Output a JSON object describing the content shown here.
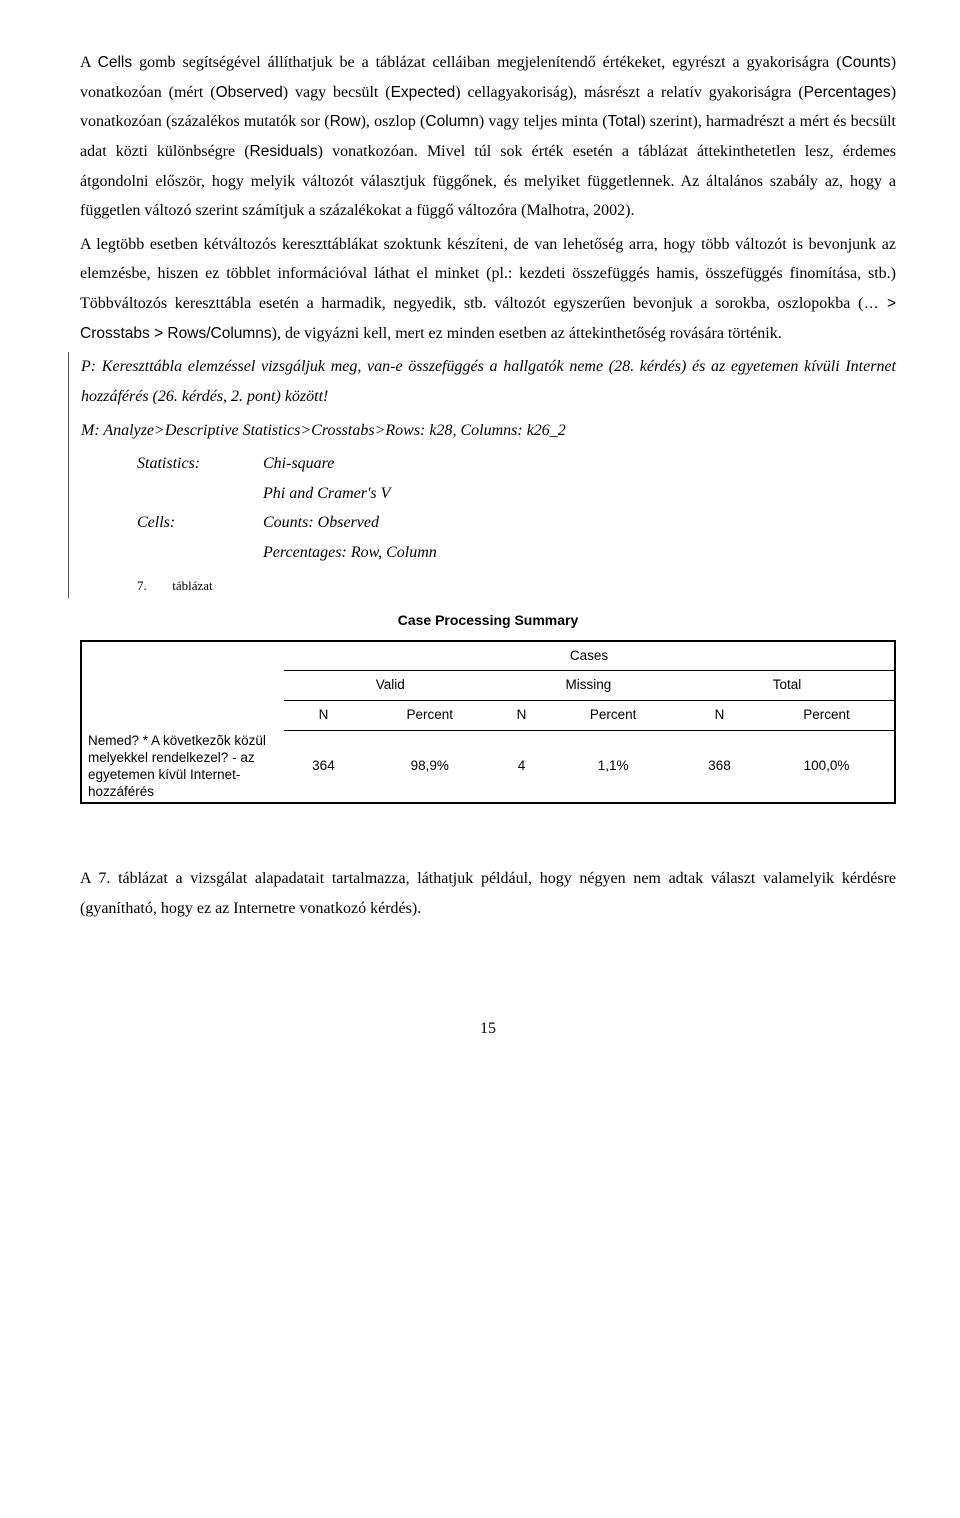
{
  "paragraph1_html": "A <span class='sans'>Cells</span> gomb segítségével állíthatjuk be a táblázat celláiban megjelenítendő értékeket, egyrészt a gyakoriságra (<span class='sans'>Counts</span>) vonatkozóan (mért (<span class='sans'>Observed</span>) vagy becsült (<span class='sans'>Expected</span>) cellagyakoriság), másrészt a relatív gyakoriságra (<span class='sans'>Percentages</span>) vonatkozóan (százalékos mutatók sor (<span class='sans'>Row</span>), oszlop (<span class='sans'>Column</span>) vagy teljes minta (<span class='sans'>Total</span>) szerint), harmadrészt a mért és becsült adat közti különbségre (<span class='sans'>Residuals</span>) vonatkozóan. Mivel túl sok érték esetén a táblázat áttekinthetetlen lesz, érdemes átgondolni először, hogy melyik változót választjuk függőnek, és melyiket függetlennek. Az általános szabály az, hogy a független változó szerint számítjuk a százalékokat a függő változóra (Malhotra, 2002).",
  "paragraph2_html": "A legtöbb esetben kétváltozós kereszttáblákat szoktunk készíteni, de van lehetőség arra, hogy több változót is bevonjunk az elemzésbe, hiszen ez többlet információval láthat el minket (pl.: kezdeti összefüggés hamis, összefüggés finomítása, stb.) Többváltozós kereszttábla esetén a harmadik, negyedik, stb. változót egyszerűen bevonjuk a sorokba, oszlopokba (<span class='sans'>… &gt; Crosstabs &gt; Rows/Columns</span>), de vigyázni kell, mert ez minden esetben az áttekinthetőség rovására történik.",
  "p_line": "P: Kereszttábla elemzéssel vizsgáljuk meg, van-e összefüggés a hallgatók neme (28. kérdés) és az egyetemen kívüli Internet hozzáférés (26. kérdés, 2. pont) között!",
  "m_line": "M: Analyze>Descriptive Statistics>Crosstabs>Rows: k28, Columns: k26_2",
  "stats": {
    "label": "Statistics:",
    "v1": "Chi-square",
    "v2": "Phi and Cramer's V"
  },
  "cells": {
    "label": "Cells:",
    "v1": "Counts: Observed",
    "v2": "Percentages: Row, Column"
  },
  "caption": {
    "num": "7.",
    "text": "táblázat"
  },
  "table": {
    "title": "Case Processing Summary",
    "group_header": "Cases",
    "cols": {
      "valid": "Valid",
      "missing": "Missing",
      "total": "Total",
      "n": "N",
      "percent": "Percent"
    },
    "row_label": "Nemed? * A következõk közül melyekkel rendelkezel? - az egyetemen kívül Internet-hozzáférés",
    "row": {
      "valid_n": "364",
      "valid_pct": "98,9%",
      "missing_n": "4",
      "missing_pct": "1,1%",
      "total_n": "368",
      "total_pct": "100,0%"
    }
  },
  "paragraph3": "A 7. táblázat a vizsgálat alapadatait tartalmazza, láthatjuk például, hogy négyen nem adtak választ valamelyik kérdésre (gyanítható, hogy ez az Internetre vonatkozó kérdés).",
  "page_number": "15"
}
